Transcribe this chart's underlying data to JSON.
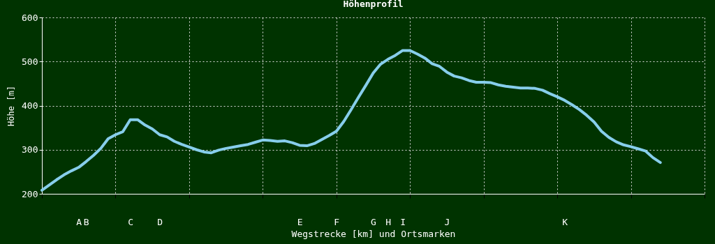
{
  "chart_data": {
    "type": "line",
    "title": "Höhenprofil",
    "xlabel": "Wegstrecke [km] und Ortsmarken",
    "ylabel": "Höhe [m]",
    "categories": [
      null,
      null,
      null,
      null,
      null,
      "A",
      "B",
      null,
      null,
      null,
      null,
      null,
      "C",
      null,
      null,
      null,
      "D",
      null,
      null,
      null,
      null,
      null,
      null,
      null,
      null,
      null,
      null,
      null,
      null,
      null,
      null,
      null,
      null,
      null,
      null,
      "E",
      null,
      null,
      null,
      null,
      "F",
      null,
      null,
      null,
      null,
      "G",
      null,
      "H",
      null,
      "I",
      null,
      null,
      null,
      null,
      null,
      "J",
      null,
      null,
      null,
      null,
      null,
      null,
      null,
      null,
      null,
      null,
      null,
      null,
      null,
      null,
      null,
      "K",
      null,
      null,
      null,
      null,
      null,
      null,
      null,
      null,
      null,
      null,
      null,
      null,
      null,
      null,
      null,
      null,
      null,
      null,
      null
    ],
    "series": [
      {
        "color": "#87ceeb",
        "values": [
          208,
          220,
          232,
          243,
          252,
          260,
          273,
          287,
          303,
          325,
          334,
          341,
          368,
          368,
          356,
          347,
          334,
          329,
          319,
          312,
          306,
          300,
          295,
          293,
          299,
          303,
          306,
          309,
          312,
          317,
          322,
          321,
          319,
          320,
          316,
          310,
          309,
          314,
          323,
          332,
          342,
          364,
          391,
          419,
          446,
          474,
          494,
          505,
          514,
          525,
          525,
          517,
          508,
          495,
          489,
          476,
          467,
          463,
          457,
          453,
          453,
          452,
          447,
          444,
          442,
          440,
          440,
          439,
          435,
          427,
          420,
          412,
          402,
          391,
          378,
          363,
          342,
          328,
          318,
          311,
          307,
          302,
          297,
          282,
          271,
          null,
          null,
          null,
          null,
          null,
          null
        ]
      }
    ],
    "ylim": [
      200,
      600
    ],
    "yticks": [
      200,
      300,
      400,
      500,
      600
    ],
    "grid": true,
    "marker": "none",
    "line_style": "solid"
  }
}
